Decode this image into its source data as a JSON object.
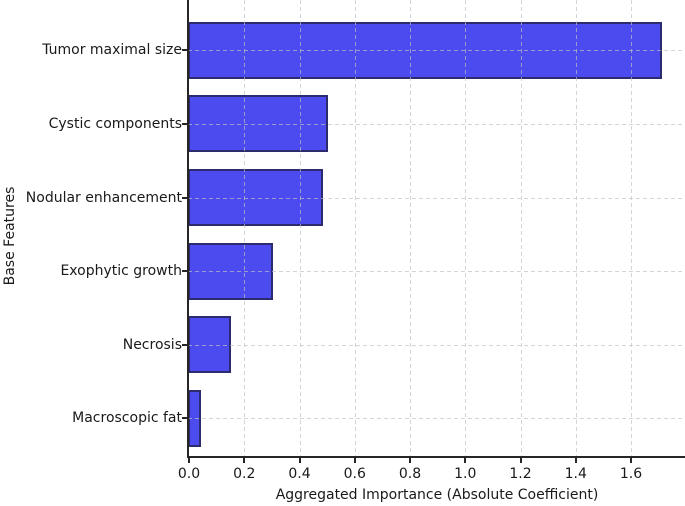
{
  "chart_data": {
    "type": "bar",
    "orientation": "horizontal",
    "title": "",
    "categories": [
      "Tumor maximal size",
      "Cystic components",
      "Nodular enhancement",
      "Exophytic growth",
      "Necrosis",
      "Macroscopic fat"
    ],
    "values": [
      1.71,
      0.5,
      0.48,
      0.3,
      0.15,
      0.04
    ],
    "xlabel": "Aggregated Importance (Absolute Coefficient)",
    "ylabel": "Base Features",
    "xlim": [
      0,
      1.8
    ],
    "xticks": [
      0.0,
      0.2,
      0.4,
      0.6,
      0.8,
      1.0,
      1.2,
      1.4,
      1.6
    ],
    "xtick_labels": [
      "0.0",
      "0.2",
      "0.4",
      "0.6",
      "0.8",
      "1.0",
      "1.2",
      "1.4",
      "1.6"
    ],
    "grid": true,
    "grid_style": "dashed",
    "legend": false,
    "colors": {
      "bar_fill": "#4b4bf0",
      "bar_edge": "#2b2b6e",
      "grid_line": "#c9c9c9",
      "axis_line": "#262626",
      "text": "#1a1a1a",
      "background": "#ffffff"
    }
  }
}
